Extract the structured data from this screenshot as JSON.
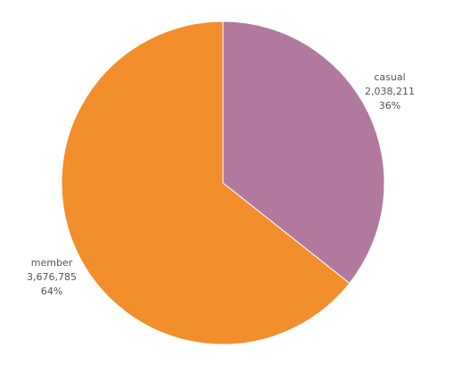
{
  "chart_data": {
    "type": "pie",
    "title": "",
    "categories": [
      "casual",
      "member"
    ],
    "values": [
      2038211,
      3676785
    ],
    "value_labels": [
      "2,038,211",
      "3,676,785"
    ],
    "percent_labels": [
      "36%",
      "64%"
    ],
    "colors": [
      "#b1799e",
      "#f28e2b"
    ],
    "start_angle_deg": 0,
    "direction": "clockwise",
    "legend": "none",
    "label_placement": "outside"
  }
}
